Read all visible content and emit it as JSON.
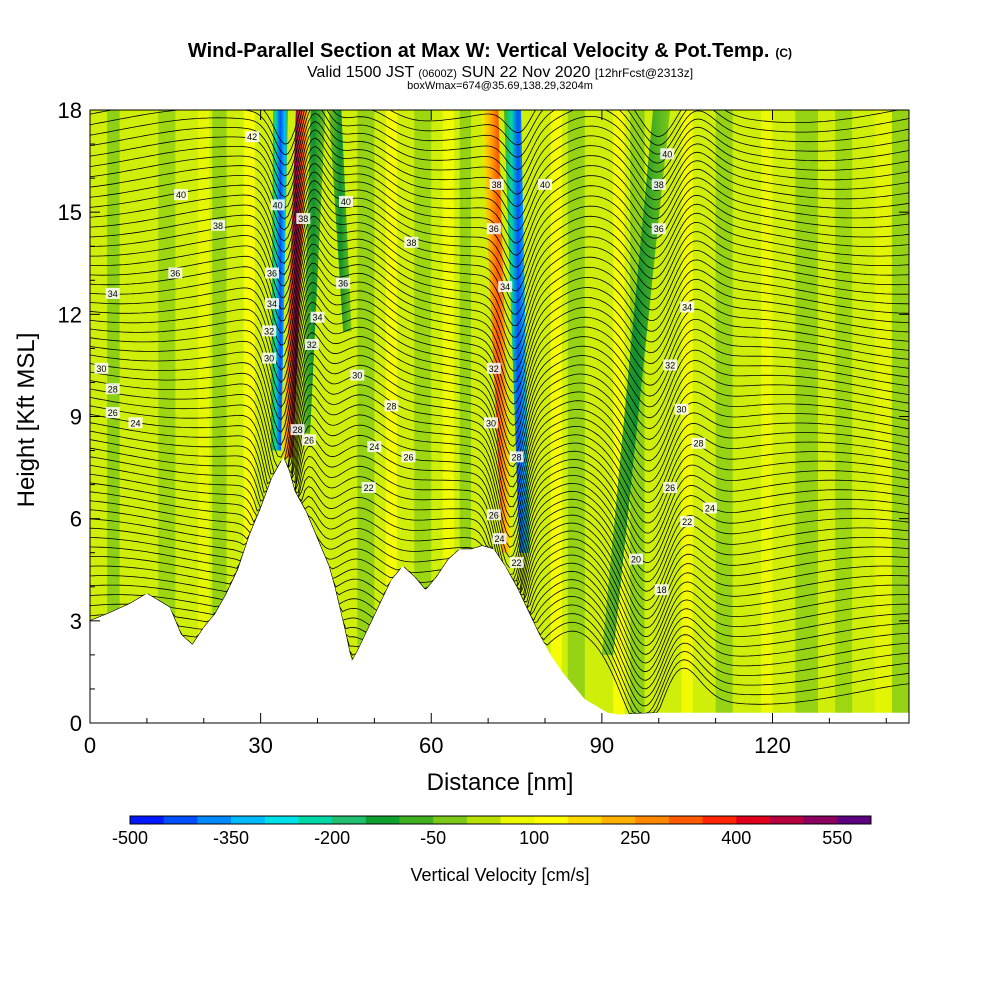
{
  "chart_data": {
    "type": "heatmap",
    "title": "Wind-Parallel Section at Max W: Vertical Velocity & Pot.Temp.",
    "title_suffix": "(C)",
    "subtitle_parts": [
      "Valid 1500 JST",
      "(0600Z)",
      "SUN 22 Nov 2020",
      "[12hrFcst@2313z]"
    ],
    "subtitle2": "boxWmax=674@35.69,138.29,3204m",
    "xlabel": "Distance [nm]",
    "ylabel": "Height [Kft MSL]",
    "xlim": [
      0,
      144
    ],
    "ylim": [
      0,
      18
    ],
    "xticks": [
      0,
      30,
      60,
      90,
      120
    ],
    "yticks": [
      0,
      3,
      6,
      9,
      12,
      15,
      18
    ],
    "colorbar": {
      "label": "Vertical Velocity [cm/s]",
      "tick_labels": [
        "-500",
        "-350",
        "-200",
        "-50",
        "100",
        "250",
        "400",
        "550"
      ],
      "colors": [
        "#0018ff",
        "#0050ff",
        "#0088ff",
        "#00bcff",
        "#00e0e8",
        "#00d8a8",
        "#20c070",
        "#10a030",
        "#40b020",
        "#7cc818",
        "#b8e000",
        "#ecf800",
        "#ffff00",
        "#ffd800",
        "#ffb000",
        "#ff8800",
        "#ff5a00",
        "#ff2400",
        "#e0001c",
        "#b80040",
        "#8c0060",
        "#5c0080"
      ]
    },
    "terrain_kft": [
      [
        0,
        3
      ],
      [
        3,
        3.2
      ],
      [
        7,
        3.5
      ],
      [
        10,
        3.8
      ],
      [
        14,
        3.4
      ],
      [
        16,
        2.6
      ],
      [
        18,
        2.3
      ],
      [
        20,
        2.8
      ],
      [
        22,
        3.2
      ],
      [
        24,
        3.8
      ],
      [
        26,
        4.5
      ],
      [
        28,
        5.5
      ],
      [
        30,
        6.3
      ],
      [
        32,
        7.2
      ],
      [
        34,
        7.8
      ],
      [
        35,
        7.4
      ],
      [
        36,
        6.8
      ],
      [
        38,
        6.2
      ],
      [
        40,
        5.4
      ],
      [
        42,
        4.6
      ],
      [
        43,
        4.0
      ],
      [
        44,
        3.3
      ],
      [
        45,
        2.6
      ],
      [
        46,
        1.8
      ],
      [
        47,
        2.1
      ],
      [
        49,
        2.8
      ],
      [
        51,
        3.5
      ],
      [
        53,
        4.2
      ],
      [
        55,
        4.6
      ],
      [
        57,
        4.3
      ],
      [
        59,
        3.9
      ],
      [
        61,
        4.3
      ],
      [
        63,
        4.8
      ],
      [
        65,
        5.1
      ],
      [
        67,
        5.1
      ],
      [
        69,
        5.2
      ],
      [
        71,
        5.1
      ],
      [
        73,
        4.6
      ],
      [
        75,
        4.0
      ],
      [
        77,
        3.3
      ],
      [
        79,
        2.6
      ],
      [
        81,
        2.0
      ],
      [
        83,
        1.5
      ],
      [
        85,
        1.1
      ],
      [
        87,
        0.7
      ],
      [
        89,
        0.5
      ],
      [
        91,
        0.3
      ],
      [
        93,
        0.25
      ],
      [
        100,
        0.3
      ],
      [
        144,
        0.3
      ]
    ],
    "vertical_velocity_features": [
      {
        "x": 34.5,
        "x_top": 36.8,
        "y_bottom": 8,
        "y_top": 18,
        "value": 600
      },
      {
        "x": 32,
        "x_top": 32.5,
        "y_bottom": 8,
        "y_top": 18,
        "value": -450
      },
      {
        "x": 38,
        "x_top": 39,
        "y_bottom": 8,
        "y_top": 18,
        "value": -150
      },
      {
        "x": 73,
        "x_top": 70,
        "y_bottom": 5,
        "y_top": 18,
        "value": 320
      },
      {
        "x": 76,
        "x_top": 75,
        "y_bottom": 5,
        "y_top": 18,
        "value": -350
      },
      {
        "x": 88,
        "x_top": 100,
        "y_bottom": 1,
        "y_top": 18,
        "value": -150
      }
    ],
    "potential_temperature_labels": [
      {
        "x": 28.5,
        "y": 17.2,
        "v": "42"
      },
      {
        "x": 16,
        "y": 15.5,
        "v": "40"
      },
      {
        "x": 22.5,
        "y": 14.6,
        "v": "38"
      },
      {
        "x": 15,
        "y": 13.2,
        "v": "36"
      },
      {
        "x": 4,
        "y": 12.6,
        "v": "34"
      },
      {
        "x": 2,
        "y": 10.4,
        "v": "30"
      },
      {
        "x": 4,
        "y": 9.8,
        "v": "28"
      },
      {
        "x": 4,
        "y": 9.1,
        "v": "26"
      },
      {
        "x": 8,
        "y": 8.8,
        "v": "24"
      },
      {
        "x": 33,
        "y": 15.2,
        "v": "40"
      },
      {
        "x": 32,
        "y": 13.2,
        "v": "36"
      },
      {
        "x": 32,
        "y": 12.3,
        "v": "34"
      },
      {
        "x": 31.5,
        "y": 11.5,
        "v": "32"
      },
      {
        "x": 31.5,
        "y": 10.7,
        "v": "30"
      },
      {
        "x": 37.5,
        "y": 14.8,
        "v": "38"
      },
      {
        "x": 40,
        "y": 11.9,
        "v": "34"
      },
      {
        "x": 39,
        "y": 11.1,
        "v": "32"
      },
      {
        "x": 36.5,
        "y": 8.6,
        "v": "28"
      },
      {
        "x": 38.5,
        "y": 8.3,
        "v": "26"
      },
      {
        "x": 45,
        "y": 15.3,
        "v": "40"
      },
      {
        "x": 44.5,
        "y": 12.9,
        "v": "36"
      },
      {
        "x": 56.5,
        "y": 14.1,
        "v": "38"
      },
      {
        "x": 47,
        "y": 10.2,
        "v": "30"
      },
      {
        "x": 53,
        "y": 9.3,
        "v": "28"
      },
      {
        "x": 50,
        "y": 8.1,
        "v": "24"
      },
      {
        "x": 56,
        "y": 7.8,
        "v": "26"
      },
      {
        "x": 49,
        "y": 6.9,
        "v": "22"
      },
      {
        "x": 71.5,
        "y": 15.8,
        "v": "38"
      },
      {
        "x": 71,
        "y": 14.5,
        "v": "36"
      },
      {
        "x": 80,
        "y": 15.8,
        "v": "40"
      },
      {
        "x": 73,
        "y": 12.8,
        "v": "34"
      },
      {
        "x": 71,
        "y": 10.4,
        "v": "32"
      },
      {
        "x": 70.5,
        "y": 8.8,
        "v": "30"
      },
      {
        "x": 75,
        "y": 7.8,
        "v": "28"
      },
      {
        "x": 71,
        "y": 6.1,
        "v": "26"
      },
      {
        "x": 72,
        "y": 5.4,
        "v": "24"
      },
      {
        "x": 75,
        "y": 4.7,
        "v": "22"
      },
      {
        "x": 101.5,
        "y": 16.7,
        "v": "40"
      },
      {
        "x": 100,
        "y": 15.8,
        "v": "38"
      },
      {
        "x": 100,
        "y": 14.5,
        "v": "36"
      },
      {
        "x": 105,
        "y": 12.2,
        "v": "34"
      },
      {
        "x": 102,
        "y": 10.5,
        "v": "32"
      },
      {
        "x": 104,
        "y": 9.2,
        "v": "30"
      },
      {
        "x": 107,
        "y": 8.2,
        "v": "28"
      },
      {
        "x": 102,
        "y": 6.9,
        "v": "26"
      },
      {
        "x": 109,
        "y": 6.3,
        "v": "24"
      },
      {
        "x": 105,
        "y": 5.9,
        "v": "22"
      },
      {
        "x": 96,
        "y": 4.8,
        "v": "20"
      },
      {
        "x": 100.5,
        "y": 3.9,
        "v": "18"
      }
    ]
  }
}
